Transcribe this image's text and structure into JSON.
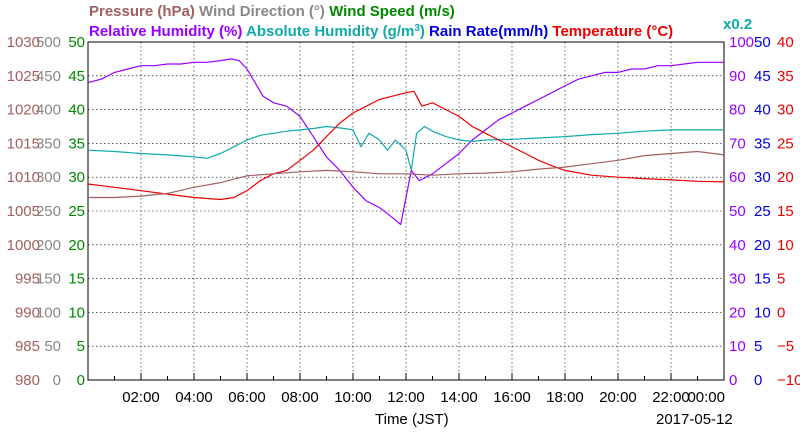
{
  "chart_data": {
    "type": "line",
    "legend_row1": [
      {
        "label": "Pressure (hPa)",
        "color": "#a06060"
      },
      {
        "label": "Wind Direction (°)",
        "color": "#888888"
      },
      {
        "label": "Wind Speed (m/s)",
        "color": "#008800"
      }
    ],
    "legend_row2": [
      {
        "label": "Relative Humidity (%)",
        "color": "#9900ff"
      },
      {
        "label": "Absolute Humidity (g/m",
        "sup": "3",
        "close": ")",
        "color": "#11aaaa"
      },
      {
        "label": "Rain Rate(mm/h)",
        "color": "#0000dd"
      },
      {
        "label": "Temperature (°C)",
        "color": "#ee0000"
      }
    ],
    "abs_humidity_scale": "x0.2",
    "xlabel": "Time (JST)",
    "date": "2017-05-12",
    "x_ticks": [
      "02:00",
      "04:00",
      "06:00",
      "08:00",
      "10:00",
      "12:00",
      "14:00",
      "16:00",
      "18:00",
      "20:00",
      "22:00",
      "00:00"
    ],
    "x_range_hours": [
      0,
      24
    ],
    "grid": true,
    "axes": {
      "pressure": {
        "color": "#a06060",
        "ticks": [
          "1030",
          "1025",
          "1020",
          "1015",
          "1010",
          "1005",
          "1000",
          "995",
          "990",
          "985",
          "980"
        ],
        "range": [
          980,
          1030
        ]
      },
      "wind_direction": {
        "color": "#888888",
        "ticks": [
          "500",
          "450",
          "400",
          "350",
          "300",
          "250",
          "200",
          "150",
          "100",
          "50",
          "0"
        ],
        "range": [
          0,
          500
        ]
      },
      "wind_speed": {
        "color": "#008800",
        "ticks": [
          "50",
          "45",
          "40",
          "35",
          "30",
          "25",
          "20",
          "15",
          "10",
          "5",
          "0"
        ],
        "range": [
          0,
          50
        ]
      },
      "relative_humidity": {
        "color": "#9900ff",
        "ticks": [
          "100",
          "90",
          "80",
          "70",
          "60",
          "50",
          "40",
          "30",
          "20",
          "10",
          "0"
        ],
        "range": [
          0,
          100
        ]
      },
      "rain_rate": {
        "color": "#0000dd",
        "ticks": [
          "50",
          "45",
          "40",
          "35",
          "30",
          "25",
          "20",
          "15",
          "10",
          "5",
          "0"
        ],
        "range": [
          0,
          50
        ]
      },
      "temperature": {
        "color": "#ee0000",
        "ticks": [
          "40",
          "35",
          "30",
          "25",
          "20",
          "15",
          "10",
          "5",
          "0",
          "−5",
          "−10"
        ],
        "range": [
          -10,
          40
        ]
      }
    },
    "series": [
      {
        "name": "Relative Humidity (%)",
        "axis": "relative_humidity",
        "color": "#9900ff",
        "x": [
          0,
          0.5,
          1,
          1.5,
          2,
          2.5,
          3,
          3.5,
          4,
          4.5,
          5,
          5.4,
          5.7,
          6,
          6.3,
          6.6,
          7,
          7.5,
          8,
          8.5,
          9,
          9.5,
          10,
          10.5,
          11,
          11.5,
          11.8,
          12,
          12.2,
          12.5,
          13,
          13.5,
          14,
          14.5,
          15,
          15.5,
          16,
          16.5,
          17,
          17.5,
          18,
          18.5,
          19,
          19.5,
          20,
          20.5,
          21,
          21.5,
          22,
          22.5,
          23,
          23.5,
          24
        ],
        "y": [
          88,
          89,
          91,
          92,
          93,
          93,
          93.5,
          93.5,
          94,
          94,
          94.5,
          95,
          94.5,
          92,
          88,
          84,
          82,
          81,
          78,
          72,
          66,
          62,
          57,
          53,
          51,
          48,
          46,
          54,
          62,
          59,
          61,
          64,
          67,
          71,
          74,
          77,
          79,
          81,
          83,
          85,
          87,
          89,
          90,
          91,
          91,
          92,
          92,
          93,
          93,
          93.5,
          94,
          94,
          94
        ]
      },
      {
        "name": "Absolute Humidity (g/m3)",
        "axis": "wind_speed",
        "color": "#11aaaa",
        "x": [
          0,
          1,
          2,
          3,
          4,
          4.5,
          5,
          5.5,
          6,
          6.5,
          7,
          7.5,
          8,
          8.5,
          9,
          9.5,
          10,
          10.3,
          10.6,
          11,
          11.3,
          11.6,
          12,
          12.2,
          12.4,
          12.7,
          13,
          13.5,
          14,
          14.5,
          15,
          16,
          17,
          18,
          19,
          20,
          21,
          22,
          23,
          24
        ],
        "y": [
          34,
          33.8,
          33.5,
          33.3,
          33,
          32.8,
          33.5,
          34.5,
          35.5,
          36.2,
          36.5,
          36.8,
          37,
          37.2,
          37.5,
          37.3,
          37,
          34.5,
          36.5,
          35.5,
          34,
          35.5,
          34,
          31,
          36.5,
          37.5,
          36.8,
          36,
          35.5,
          35.3,
          35.5,
          35.6,
          35.8,
          36,
          36.3,
          36.5,
          36.8,
          37,
          37,
          37
        ]
      },
      {
        "name": "Temperature (°C)",
        "axis": "temperature",
        "color": "#ee0000",
        "x": [
          0,
          1,
          2,
          3,
          4,
          5,
          5.5,
          6,
          6.5,
          7,
          7.5,
          8,
          8.5,
          9,
          9.5,
          10,
          10.5,
          11,
          11.5,
          12,
          12.3,
          12.6,
          13,
          13.5,
          14,
          14.5,
          15,
          15.5,
          16,
          16.5,
          17,
          17.5,
          18,
          19,
          20,
          21,
          22,
          23,
          24
        ],
        "y": [
          19,
          18.5,
          18,
          17.5,
          17,
          16.7,
          17,
          18,
          19.5,
          20.5,
          21,
          22.5,
          24,
          26,
          28,
          29.5,
          30.5,
          31.5,
          32,
          32.5,
          32.7,
          30.5,
          31,
          30,
          29,
          27.5,
          26.5,
          25.5,
          24.5,
          23.5,
          22.5,
          21.7,
          21,
          20.3,
          20,
          19.8,
          19.6,
          19.4,
          19.3
        ]
      },
      {
        "name": "Pressure (hPa)",
        "axis": "pressure",
        "color": "#a06060",
        "x": [
          0,
          1,
          2,
          3,
          4,
          5,
          6,
          7,
          8,
          9,
          10,
          11,
          12,
          13,
          14,
          15,
          16,
          17,
          18,
          19,
          20,
          21,
          22,
          23,
          24
        ],
        "y": [
          1007,
          1007,
          1007.2,
          1007.6,
          1008.5,
          1009.2,
          1010.2,
          1010.5,
          1010.8,
          1011,
          1010.8,
          1010.5,
          1010.5,
          1010.3,
          1010.5,
          1010.6,
          1010.8,
          1011.2,
          1011.5,
          1012,
          1012.5,
          1013.2,
          1013.5,
          1013.8,
          1013.3
        ]
      }
    ]
  }
}
